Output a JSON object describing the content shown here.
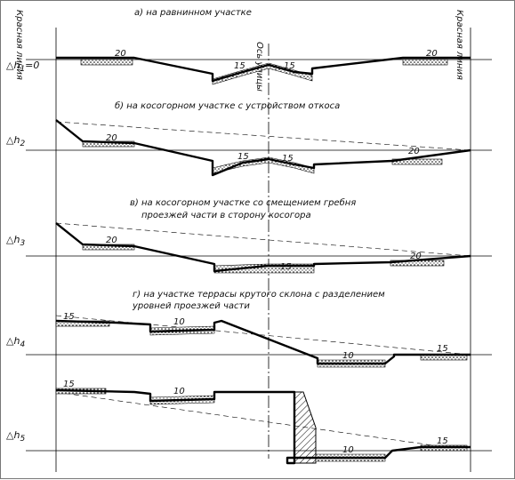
{
  "side_labels": {
    "left": "Красная линия",
    "right": "Красная линия",
    "axis": "Ось улицы"
  },
  "captions": {
    "a": "а) на равнинном участке",
    "b": "б) на косогорном участке с устройством откоса",
    "c1": "в) на косогорном участке со смещением гребня",
    "c2": "проезжей части в сторону косогора",
    "d1": "г) на участке террасы крутого склона с разделением",
    "d2": "уровней проезжей части"
  },
  "levels": {
    "a": {
      "prefix": "△h",
      "sub": "1",
      "suffix": "=0"
    },
    "b": {
      "prefix": "△h",
      "sub": "2",
      "suffix": ""
    },
    "c": {
      "prefix": "△h",
      "sub": "3",
      "suffix": ""
    },
    "d4": {
      "prefix": "△h",
      "sub": "4",
      "suffix": ""
    },
    "d5": {
      "prefix": "△h",
      "sub": "5",
      "suffix": ""
    }
  },
  "slopes": {
    "a": [
      "20",
      "15",
      "15",
      "20"
    ],
    "b": [
      "20",
      "15",
      "15",
      "20"
    ],
    "c": [
      "20",
      "15",
      "20"
    ],
    "d4": [
      "15",
      "10",
      "10",
      "15"
    ],
    "d5": [
      "15",
      "10",
      "10",
      "15"
    ]
  }
}
